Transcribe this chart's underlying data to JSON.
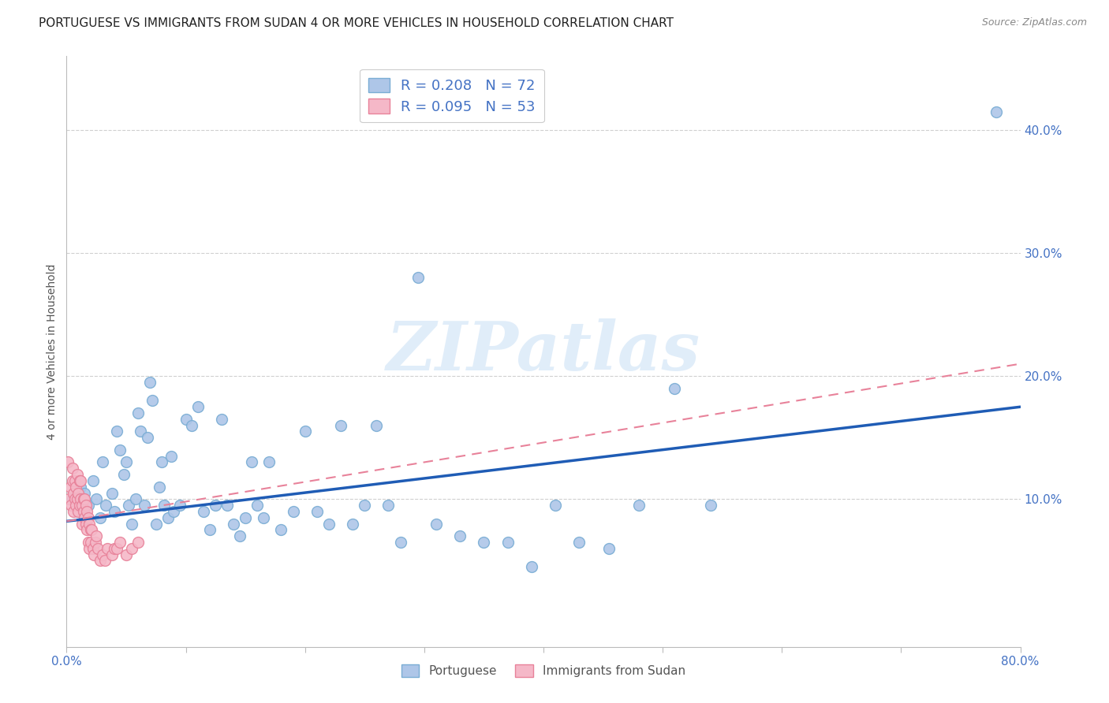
{
  "title": "PORTUGUESE VS IMMIGRANTS FROM SUDAN 4 OR MORE VEHICLES IN HOUSEHOLD CORRELATION CHART",
  "source": "Source: ZipAtlas.com",
  "ylabel": "4 or more Vehicles in Household",
  "watermark": "ZIPatlas",
  "xlim": [
    0.0,
    0.8
  ],
  "ylim": [
    -0.02,
    0.46
  ],
  "xticks": [
    0.0,
    0.1,
    0.2,
    0.3,
    0.4,
    0.5,
    0.6,
    0.7,
    0.8
  ],
  "xtick_labels": [
    "0.0%",
    "",
    "",
    "",
    "",
    "",
    "",
    "",
    "80.0%"
  ],
  "yticks_right": [
    0.1,
    0.2,
    0.3,
    0.4
  ],
  "ytick_labels_right": [
    "10.0%",
    "20.0%",
    "30.0%",
    "40.0%"
  ],
  "blue_R": 0.208,
  "blue_N": 72,
  "pink_R": 0.095,
  "pink_N": 53,
  "blue_color": "#aec6e8",
  "blue_edge": "#7aadd4",
  "pink_color": "#f5b8c8",
  "pink_edge": "#e8829a",
  "blue_line_color": "#1f5cb5",
  "pink_line_color": "#e8829a",
  "blue_scatter_x": [
    0.005,
    0.01,
    0.012,
    0.015,
    0.018,
    0.022,
    0.025,
    0.028,
    0.03,
    0.033,
    0.038,
    0.04,
    0.042,
    0.045,
    0.048,
    0.05,
    0.052,
    0.055,
    0.058,
    0.06,
    0.062,
    0.065,
    0.068,
    0.07,
    0.072,
    0.075,
    0.078,
    0.08,
    0.082,
    0.085,
    0.088,
    0.09,
    0.095,
    0.1,
    0.105,
    0.11,
    0.115,
    0.12,
    0.125,
    0.13,
    0.135,
    0.14,
    0.145,
    0.15,
    0.155,
    0.16,
    0.165,
    0.17,
    0.18,
    0.19,
    0.2,
    0.21,
    0.22,
    0.23,
    0.24,
    0.25,
    0.26,
    0.27,
    0.28,
    0.295,
    0.31,
    0.33,
    0.35,
    0.37,
    0.39,
    0.41,
    0.43,
    0.455,
    0.48,
    0.51,
    0.54,
    0.78
  ],
  "blue_scatter_y": [
    0.1,
    0.09,
    0.11,
    0.105,
    0.095,
    0.115,
    0.1,
    0.085,
    0.13,
    0.095,
    0.105,
    0.09,
    0.155,
    0.14,
    0.12,
    0.13,
    0.095,
    0.08,
    0.1,
    0.17,
    0.155,
    0.095,
    0.15,
    0.195,
    0.18,
    0.08,
    0.11,
    0.13,
    0.095,
    0.085,
    0.135,
    0.09,
    0.095,
    0.165,
    0.16,
    0.175,
    0.09,
    0.075,
    0.095,
    0.165,
    0.095,
    0.08,
    0.07,
    0.085,
    0.13,
    0.095,
    0.085,
    0.13,
    0.075,
    0.09,
    0.155,
    0.09,
    0.08,
    0.16,
    0.08,
    0.095,
    0.16,
    0.095,
    0.065,
    0.28,
    0.08,
    0.07,
    0.065,
    0.065,
    0.045,
    0.095,
    0.065,
    0.06,
    0.095,
    0.19,
    0.095,
    0.415
  ],
  "pink_scatter_x": [
    0.001,
    0.002,
    0.003,
    0.004,
    0.005,
    0.005,
    0.006,
    0.006,
    0.007,
    0.007,
    0.008,
    0.008,
    0.009,
    0.009,
    0.01,
    0.01,
    0.011,
    0.011,
    0.012,
    0.012,
    0.013,
    0.013,
    0.014,
    0.014,
    0.015,
    0.015,
    0.016,
    0.016,
    0.017,
    0.017,
    0.018,
    0.018,
    0.019,
    0.019,
    0.02,
    0.02,
    0.021,
    0.022,
    0.023,
    0.024,
    0.025,
    0.026,
    0.028,
    0.03,
    0.032,
    0.034,
    0.038,
    0.04,
    0.042,
    0.045,
    0.05,
    0.055,
    0.06
  ],
  "pink_scatter_y": [
    0.13,
    0.1,
    0.11,
    0.095,
    0.115,
    0.125,
    0.105,
    0.09,
    0.1,
    0.115,
    0.095,
    0.11,
    0.12,
    0.1,
    0.105,
    0.09,
    0.115,
    0.095,
    0.1,
    0.115,
    0.095,
    0.08,
    0.1,
    0.09,
    0.085,
    0.1,
    0.095,
    0.08,
    0.09,
    0.075,
    0.085,
    0.065,
    0.08,
    0.06,
    0.075,
    0.065,
    0.075,
    0.06,
    0.055,
    0.065,
    0.07,
    0.06,
    0.05,
    0.055,
    0.05,
    0.06,
    0.055,
    0.06,
    0.06,
    0.065,
    0.055,
    0.06,
    0.065
  ],
  "blue_trendline_x": [
    0.0,
    0.8
  ],
  "blue_trendline_y": [
    0.082,
    0.175
  ],
  "pink_trendline_x": [
    0.0,
    0.8
  ],
  "pink_trendline_y": [
    0.082,
    0.21
  ],
  "background_color": "#ffffff",
  "grid_color": "#d0d0d0",
  "title_fontsize": 11,
  "axis_label_fontsize": 10,
  "tick_fontsize": 11,
  "legend_fontsize": 13
}
